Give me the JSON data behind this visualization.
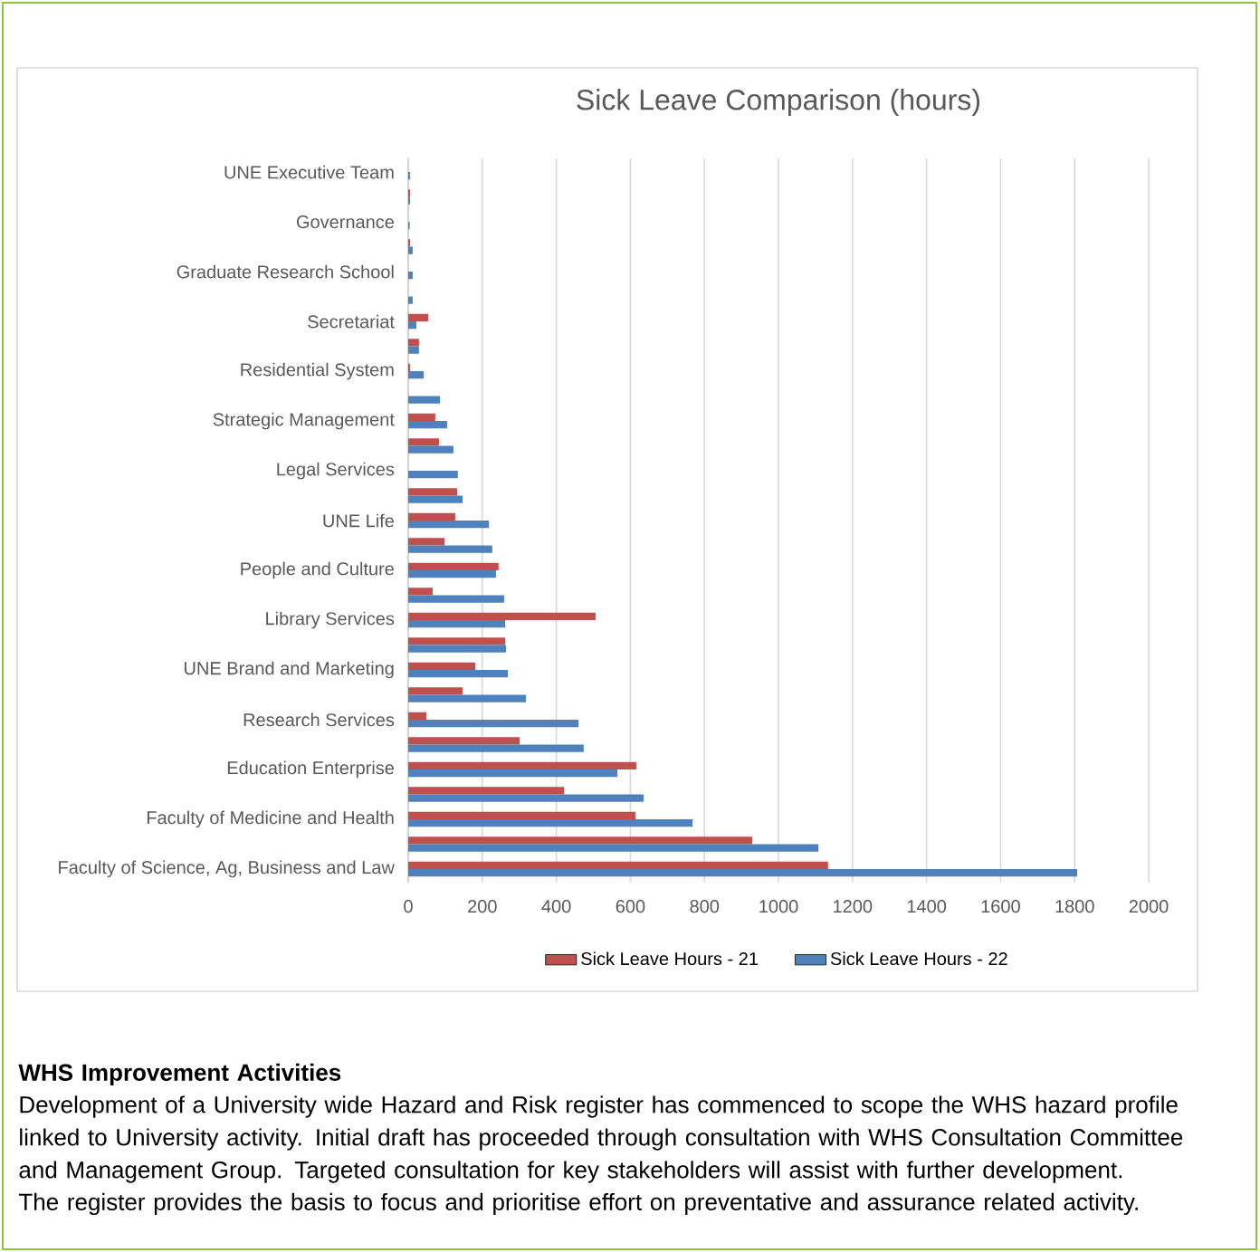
{
  "chart_data": {
    "type": "bar",
    "orientation": "horizontal",
    "title": "Sick Leave Comparison (hours)",
    "categories": [
      "UNE Executive Team",
      null,
      "Governance",
      null,
      "Graduate Research School",
      null,
      "Secretariat",
      null,
      "Residential System",
      null,
      "Strategic Management",
      null,
      "Legal Services",
      null,
      "UNE Life",
      null,
      "People and Culture",
      null,
      "Library Services",
      null,
      "UNE Brand and Marketing",
      null,
      "Research Services",
      null,
      "Education Enterprise",
      null,
      "Faculty of Medicine and Health",
      null,
      "Faculty of Science, Ag, Business and Law"
    ],
    "series": [
      {
        "name": "Sick Leave Hours - 21",
        "color": "#c0504d",
        "values": [
          null,
          5,
          null,
          5,
          null,
          null,
          54,
          29,
          5,
          null,
          73,
          83,
          null,
          132,
          127,
          98,
          244,
          66,
          506,
          262,
          181,
          147,
          49,
          301,
          616,
          421,
          614,
          929,
          1134
        ]
      },
      {
        "name": "Sick Leave Hours - 22",
        "color": "#4f81bd",
        "values": [
          5,
          5,
          4,
          12,
          12,
          12,
          22,
          29,
          42,
          86,
          105,
          122,
          134,
          147,
          218,
          227,
          237,
          259,
          262,
          264,
          269,
          318,
          460,
          474,
          565,
          636,
          768,
          1108,
          1807
        ]
      }
    ],
    "xlim": [
      0,
      2000
    ],
    "xticks": [
      0,
      200,
      400,
      600,
      800,
      1000,
      1200,
      1400,
      1600,
      1800,
      2000
    ],
    "grid": "x",
    "legend": "bottom",
    "annotations": [
      "WHS Improvement Activities",
      "Development of a University wide Hazard and Risk register has commenced to scope the WHS hazard profile linked to University activity. Initial draft has proceeded through consultation with WHS Consultation Committee and Management Group. Targeted consultation for key stakeholders will assist with further development.",
      "The register provides the basis to focus and prioritise effort on preventative and assurance related activity."
    ]
  }
}
